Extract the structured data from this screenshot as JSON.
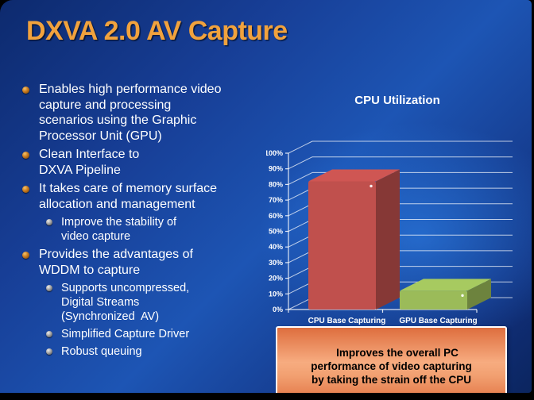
{
  "slide": {
    "title": "DXVA 2.0 AV Capture",
    "accent_color": "#F1A23D",
    "background_base_color": "#12317E",
    "bullets": [
      {
        "level": 1,
        "text": "Enables high performance video\ncapture and processing\nscenarios using the Graphic\nProcessor Unit (GPU)"
      },
      {
        "level": 1,
        "text": "Clean Interface to\nDXVA Pipeline"
      },
      {
        "level": 1,
        "text": "It takes care of memory surface\nallocation and management"
      },
      {
        "level": 2,
        "text": "Improve the stability of\nvideo capture"
      },
      {
        "level": 1,
        "text": "Provides the advantages of\nWDDM to capture"
      },
      {
        "level": 2,
        "text": "Supports uncompressed,\nDigital Streams\n(Synchronized  AV)"
      },
      {
        "level": 2,
        "text": "Simplified Capture Driver"
      },
      {
        "level": 2,
        "text": "Robust queuing"
      }
    ]
  },
  "chart_data": {
    "type": "bar",
    "style": "3d",
    "title": "CPU Utilization",
    "categories": [
      "CPU Base Capturing",
      "GPU Base Capturing"
    ],
    "values": [
      82,
      12
    ],
    "unit": "%",
    "ylim": [
      0,
      100
    ],
    "ytick_step": 10,
    "ytick_labels": [
      "0%",
      "10%",
      "20%",
      "30%",
      "40%",
      "50%",
      "60%",
      "70%",
      "80%",
      "90%",
      "100%"
    ],
    "bar_colors": [
      "#C0504D",
      "#9BBB59"
    ],
    "grid": true,
    "legend": false,
    "xlabel": "",
    "ylabel": ""
  },
  "callout": {
    "text": "Improves the overall PC\nperformance of video capturing\nby taking the strain off the CPU",
    "border_color": "#FFFFFF",
    "background_color": "#F2996B",
    "text_color": "#000000"
  }
}
